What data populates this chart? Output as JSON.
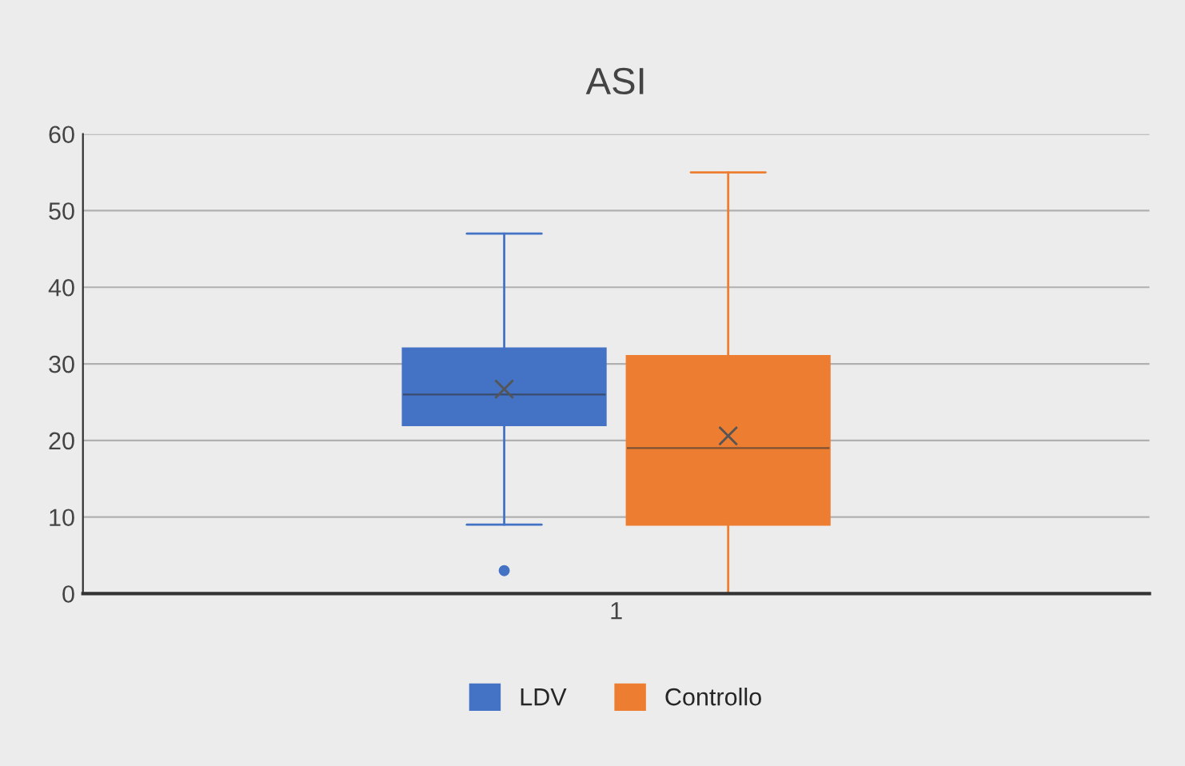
{
  "chart_data": {
    "type": "box",
    "title": "ASI",
    "categories": [
      "1"
    ],
    "series": [
      {
        "name": "LDV",
        "color": "#4472c4",
        "boxes": [
          {
            "low": 9,
            "q1": 22,
            "median": 26,
            "q3": 32,
            "high": 47,
            "mean": 26.7,
            "outliers": [
              3
            ]
          }
        ]
      },
      {
        "name": "Controllo",
        "color": "#ed7d31",
        "boxes": [
          {
            "low": 0,
            "q1": 9,
            "median": 19,
            "q3": 31,
            "high": 55,
            "mean": 20.6
          }
        ]
      }
    ],
    "ylim": [
      0,
      60
    ],
    "yticks": [
      0,
      10,
      20,
      30,
      40,
      50,
      60
    ],
    "grid": "y",
    "legend": "bottom"
  }
}
